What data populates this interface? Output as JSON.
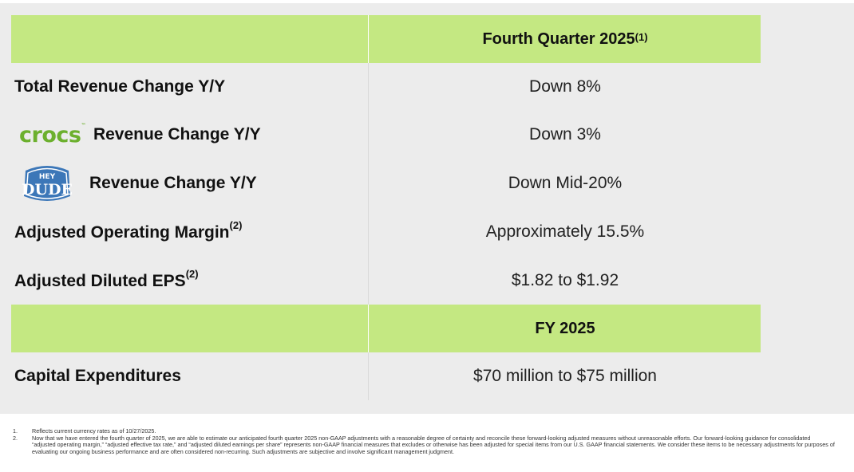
{
  "header1": {
    "title": "Fourth Quarter 2025",
    "sup": "(1)"
  },
  "rows": [
    {
      "label": "Total Revenue Change Y/Y",
      "value": "Down 8%"
    },
    {
      "logo": "crocs",
      "label": "Revenue Change Y/Y",
      "value": "Down 3%"
    },
    {
      "logo": "HEY DUDE",
      "label": "Revenue Change Y/Y",
      "value": "Down Mid-20%"
    },
    {
      "label": "Adjusted Operating Margin",
      "sup": "(2)",
      "value": "Approximately 15.5%"
    },
    {
      "label": "Adjusted Diluted EPS",
      "sup": "(2)",
      "value": "$1.82 to $1.92"
    }
  ],
  "header2": {
    "title": "FY 2025"
  },
  "capex": {
    "label": "Capital Expenditures",
    "value": "$70 million to $75 million"
  },
  "colors": {
    "header_bg": "#c4e882",
    "slide_bg": "#ececec",
    "crocs_green": "#6cb02e",
    "heydude_blue": "#3c77b8"
  },
  "footnotes": [
    {
      "num": "1.",
      "text": "Reflects current currency rates as of 10/27/2025."
    },
    {
      "num": "2.",
      "text": "Now that we have entered the fourth quarter of 2025, we are able to estimate our anticipated fourth quarter 2025 non-GAAP adjustments with a reasonable degree of certainty and reconcile these forward-looking adjusted measures without unreasonable efforts. Our forward-looking guidance for consolidated “adjusted operating margin,” “adjusted effective tax rate,” and “adjusted diluted earnings per share” represents non-GAAP financial measures that excludes or otherwise has been adjusted for special items from our U.S. GAAP financial statements. We consider these items to be necessary adjustments for purposes of evaluating our ongoing business performance and are often considered non-recurring. Such adjustments are subjective and involve significant management judgment."
    }
  ]
}
